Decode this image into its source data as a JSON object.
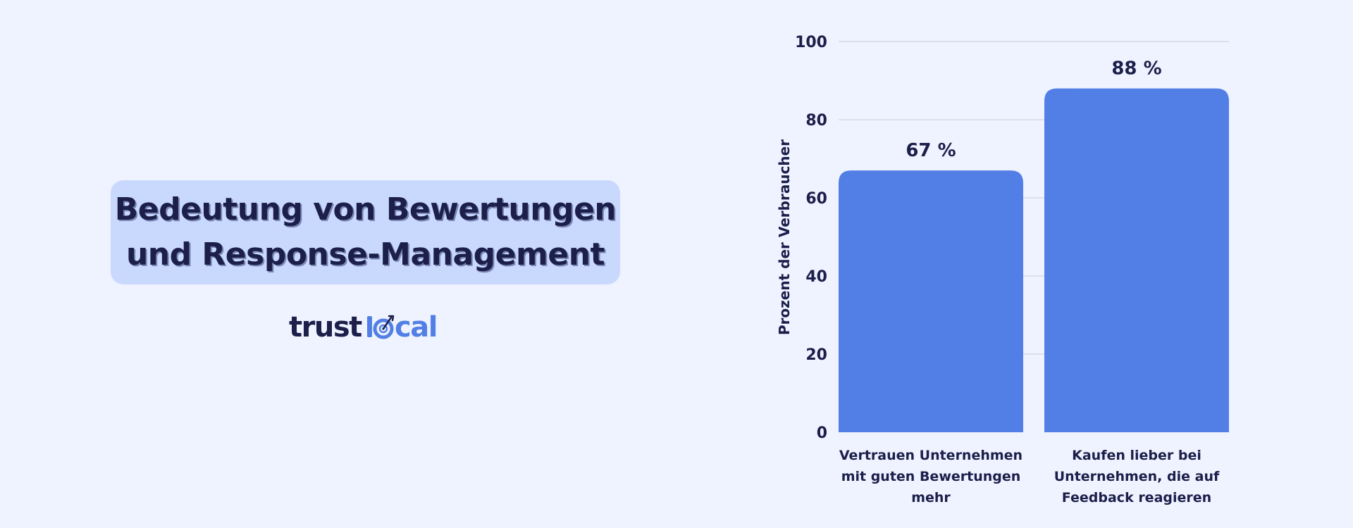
{
  "colors": {
    "background": "#eff3ff",
    "title_card": "#c9d8fd",
    "text_dark": "#1b1f4a",
    "bar": "#527fe5",
    "grid": "#c9cbd6",
    "logo_accent": "#527fe5"
  },
  "title": {
    "line1": "Bedeutung von Bewertungen",
    "line2": "und Response-Management"
  },
  "logo": {
    "text_left": "trust",
    "text_right": "cal",
    "icon": "target-icon"
  },
  "chart_data": {
    "type": "bar",
    "categories": [
      [
        "Vertrauen Unternehmen",
        "mit guten Bewertungen",
        "mehr"
      ],
      [
        "Kaufen lieber bei",
        "Unternehmen, die auf",
        "Feedback reagieren"
      ]
    ],
    "values": [
      67,
      88
    ],
    "value_labels": [
      "67 %",
      "88 %"
    ],
    "ylabel": "Prozent der Verbraucher",
    "ylim": [
      0,
      100
    ],
    "yticks": [
      0,
      20,
      40,
      60,
      80,
      100
    ],
    "grid": true
  }
}
